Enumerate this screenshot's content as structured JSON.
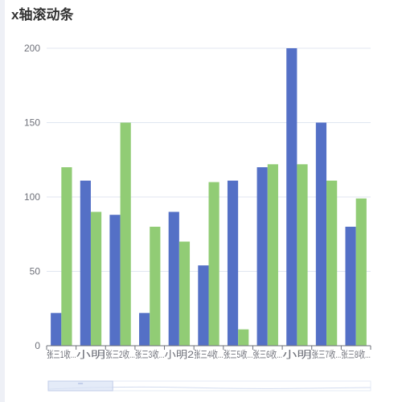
{
  "title": "x轴滚动条",
  "colors": {
    "series1": "#5470c6",
    "series2": "#91cc75",
    "grid": "#e0e6f1",
    "axis": "#6e7079",
    "zoom_fill": "#d8e2f5",
    "zoom_border": "#c2cde8"
  },
  "chart_data": {
    "type": "bar",
    "title": "x轴滚动条",
    "categories": [
      "张三1收...",
      "小明",
      "张三2收...",
      "张三3收...",
      "小明2",
      "张三4收...",
      "张三5收...",
      "张三6收...",
      "小明",
      "张三7收...",
      "张三8收..."
    ],
    "series": [
      {
        "values": [
          22,
          111,
          88,
          22,
          90,
          54,
          111,
          120,
          200,
          150,
          80
        ]
      },
      {
        "values": [
          120,
          90,
          150,
          80,
          70,
          110,
          11,
          122,
          122,
          111,
          99
        ]
      }
    ],
    "yticks": [
      "0",
      "50",
      "100",
      "150",
      "200"
    ],
    "ylim": [
      0,
      200
    ],
    "grid": true,
    "datazoom": {
      "orientation": "horizontal",
      "position": "bottom",
      "start": 0,
      "end": 0.2
    }
  }
}
